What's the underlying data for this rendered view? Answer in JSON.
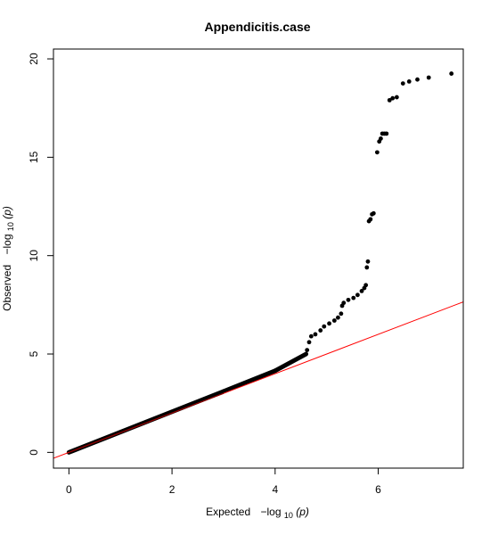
{
  "chart_data": {
    "type": "scatter",
    "title": "Appendicitis.case",
    "xlabel": {
      "main": "Expected",
      "expr_prefix": "−log",
      "sub": "10",
      "expr_suffix": "(p)"
    },
    "ylabel": {
      "main": "Observed",
      "expr_prefix": "−log",
      "sub": "10",
      "expr_suffix": "(p)"
    },
    "xlim": [
      -0.3,
      7.65
    ],
    "ylim": [
      -0.8,
      20.5
    ],
    "x_ticks": [
      0,
      2,
      4,
      6
    ],
    "x_tick_labels": [
      "0",
      "2",
      "4",
      "6"
    ],
    "y_ticks": [
      0,
      5,
      10,
      15,
      20
    ],
    "y_tick_labels": [
      "0",
      "5",
      "10",
      "15",
      "20"
    ],
    "point_color": "#000000",
    "reference_line": {
      "slope": 1,
      "intercept": 0,
      "color": "#ff0000"
    },
    "dense_segments": [
      {
        "from": [
          0,
          0
        ],
        "to": [
          3.0,
          3.1
        ],
        "overlay_color": "#8b0000"
      },
      {
        "from": [
          3.0,
          3.1
        ],
        "to": [
          4.0,
          4.15
        ]
      },
      {
        "from": [
          4.0,
          4.15
        ],
        "to": [
          4.6,
          5.0
        ]
      }
    ],
    "points": [
      [
        4.62,
        5.2
      ],
      [
        4.66,
        5.6
      ],
      [
        4.7,
        5.9
      ],
      [
        4.78,
        6.0
      ],
      [
        4.88,
        6.2
      ],
      [
        4.95,
        6.4
      ],
      [
        5.05,
        6.55
      ],
      [
        5.15,
        6.7
      ],
      [
        5.22,
        6.85
      ],
      [
        5.28,
        7.05
      ],
      [
        5.3,
        7.45
      ],
      [
        5.33,
        7.6
      ],
      [
        5.42,
        7.75
      ],
      [
        5.52,
        7.85
      ],
      [
        5.6,
        8.0
      ],
      [
        5.68,
        8.2
      ],
      [
        5.73,
        8.35
      ],
      [
        5.76,
        8.5
      ],
      [
        5.78,
        9.4
      ],
      [
        5.8,
        9.7
      ],
      [
        5.82,
        11.75
      ],
      [
        5.85,
        11.85
      ],
      [
        5.88,
        12.1
      ],
      [
        5.91,
        12.15
      ],
      [
        5.98,
        15.25
      ],
      [
        6.02,
        15.8
      ],
      [
        6.05,
        15.95
      ],
      [
        6.08,
        16.2
      ],
      [
        6.12,
        16.2
      ],
      [
        6.16,
        16.2
      ],
      [
        6.22,
        17.9
      ],
      [
        6.28,
        18.0
      ],
      [
        6.36,
        18.05
      ],
      [
        6.48,
        18.75
      ],
      [
        6.6,
        18.85
      ],
      [
        6.76,
        18.95
      ],
      [
        6.98,
        19.05
      ],
      [
        7.42,
        19.25
      ]
    ]
  }
}
